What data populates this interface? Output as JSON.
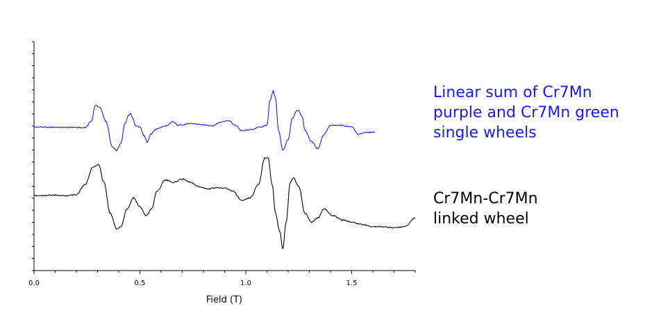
{
  "chart_data": {
    "type": "line",
    "xlabel": "Field (T)",
    "ylabel": "",
    "xlim": [
      0,
      1.8
    ],
    "x_ticks": [
      "0.0",
      "0.5",
      "1.0",
      "1.5"
    ],
    "grid": false,
    "legend_placement": "right",
    "series": [
      {
        "name": "Linear sum of Cr7Mn purple and Cr7Mn green single wheels",
        "label_lines": [
          "Linear sum of Cr7Mn",
          "purple and Cr7Mn green",
          "single wheels"
        ],
        "color": "#1a1ae6",
        "x": [
          0.0,
          0.12,
          0.2,
          0.24,
          0.27,
          0.29,
          0.31,
          0.34,
          0.37,
          0.39,
          0.41,
          0.43,
          0.445,
          0.455,
          0.465,
          0.48,
          0.5,
          0.52,
          0.535,
          0.55,
          0.58,
          0.62,
          0.655,
          0.68,
          0.7,
          0.73,
          0.78,
          0.84,
          0.88,
          0.92,
          0.95,
          0.98,
          1.02,
          1.07,
          1.1,
          1.115,
          1.13,
          1.14,
          1.155,
          1.175,
          1.2,
          1.22,
          1.24,
          1.25,
          1.265,
          1.28,
          1.31,
          1.34,
          1.37,
          1.4,
          1.44,
          1.5,
          1.53,
          1.57,
          1.61
        ],
        "y": [
          0.0,
          -0.02,
          -0.02,
          -0.05,
          0.3,
          1.2,
          1.1,
          0.3,
          -1.1,
          -1.3,
          -0.9,
          0.2,
          0.6,
          0.75,
          0.5,
          0.05,
          0.0,
          -0.5,
          -0.85,
          -0.4,
          -0.1,
          0.05,
          0.3,
          0.1,
          0.1,
          0.2,
          0.15,
          0.05,
          0.25,
          0.35,
          0.1,
          -0.2,
          -0.15,
          0.0,
          0.1,
          1.5,
          2.0,
          1.6,
          -0.2,
          -1.3,
          -0.7,
          0.5,
          0.9,
          0.9,
          0.6,
          -0.2,
          -0.8,
          -1.2,
          -0.4,
          0.1,
          0.1,
          0.0,
          -0.4,
          -0.3,
          -0.3
        ]
      },
      {
        "name": "Cr7Mn-Cr7Mn linked wheel",
        "label_lines": [
          "Cr7Mn-Cr7Mn",
          "linked wheel"
        ],
        "color": "#000000",
        "x": [
          0.0,
          0.08,
          0.15,
          0.2,
          0.24,
          0.28,
          0.305,
          0.33,
          0.36,
          0.39,
          0.41,
          0.44,
          0.47,
          0.5,
          0.53,
          0.555,
          0.58,
          0.62,
          0.66,
          0.7,
          0.74,
          0.78,
          0.82,
          0.86,
          0.9,
          0.94,
          0.98,
          1.02,
          1.06,
          1.09,
          1.105,
          1.125,
          1.14,
          1.16,
          1.175,
          1.19,
          1.21,
          1.225,
          1.25,
          1.28,
          1.31,
          1.34,
          1.37,
          1.41,
          1.46,
          1.5,
          1.55,
          1.6,
          1.65,
          1.7,
          1.75,
          1.8
        ],
        "y": [
          0.0,
          0.02,
          0.0,
          0.05,
          0.5,
          1.3,
          1.4,
          0.6,
          -0.8,
          -1.5,
          -1.4,
          -0.6,
          -0.1,
          -0.5,
          -0.9,
          -0.6,
          0.2,
          0.7,
          0.6,
          0.75,
          0.6,
          0.4,
          0.3,
          0.35,
          0.35,
          0.2,
          -0.2,
          -0.1,
          0.5,
          1.7,
          1.7,
          0.5,
          -0.8,
          -1.6,
          -2.4,
          -1.2,
          0.6,
          0.8,
          0.4,
          -0.8,
          -1.2,
          -1.0,
          -0.6,
          -0.9,
          -1.1,
          -1.2,
          -1.3,
          -1.4,
          -1.4,
          -1.45,
          -1.4,
          -1.0
        ]
      }
    ]
  }
}
